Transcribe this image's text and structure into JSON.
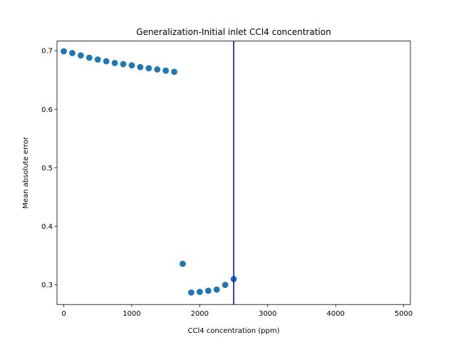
{
  "chart_data": {
    "type": "scatter",
    "title": "Generalization-Initial inlet CCl4 concentration",
    "xlabel": "CCl4 concentration (ppm)",
    "ylabel": "Mean absolute error",
    "xlim": [
      -100,
      5100
    ],
    "ylim": [
      0.2665,
      0.7165
    ],
    "xticks": [
      0,
      1000,
      2000,
      3000,
      4000,
      5000
    ],
    "yticks": [
      0.3,
      0.4,
      0.5,
      0.6,
      0.7
    ],
    "grid": false,
    "series": [
      {
        "x": [
          0,
          125,
          250,
          375,
          500,
          625,
          750,
          875,
          1000,
          1125,
          1250,
          1375,
          1500,
          1625,
          1750,
          1875,
          2000,
          2125,
          2250,
          2375,
          2500
        ],
        "y": [
          0.699,
          0.696,
          0.692,
          0.688,
          0.685,
          0.682,
          0.679,
          0.677,
          0.675,
          0.672,
          0.67,
          0.668,
          0.666,
          0.664,
          0.336,
          0.287,
          0.288,
          0.29,
          0.292,
          0.3,
          0.31
        ],
        "color": "#1f77b4"
      }
    ],
    "vline": {
      "x": 2500,
      "color": "#0000cc"
    }
  }
}
